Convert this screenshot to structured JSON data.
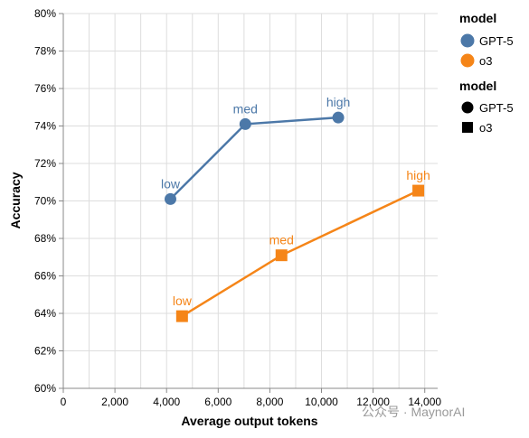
{
  "chart_data": {
    "type": "line",
    "xlabel": "Average output tokens",
    "ylabel": "Accuracy",
    "xlim": [
      0,
      14500
    ],
    "ylim": [
      60,
      80
    ],
    "x_ticks": [
      0,
      2000,
      4000,
      6000,
      8000,
      10000,
      12000,
      14000
    ],
    "x_tick_labels": [
      "0",
      "2,000",
      "4,000",
      "6,000",
      "8,000",
      "10,000",
      "12,000",
      "14,000"
    ],
    "y_ticks": [
      60,
      62,
      64,
      66,
      68,
      70,
      72,
      74,
      76,
      78,
      80
    ],
    "y_tick_labels": [
      "60%",
      "62%",
      "64%",
      "66%",
      "68%",
      "70%",
      "72%",
      "74%",
      "76%",
      "78%",
      "80%"
    ],
    "grid": true,
    "legend_position": "top-right",
    "series": [
      {
        "name": "GPT-5",
        "color": "#4c78a8",
        "shape": "circle",
        "points": [
          {
            "x": 4150,
            "y": 70.1,
            "label": "low"
          },
          {
            "x": 7050,
            "y": 74.1,
            "label": "med"
          },
          {
            "x": 10650,
            "y": 74.45,
            "label": "high"
          }
        ]
      },
      {
        "name": "o3",
        "color": "#f58518",
        "shape": "square",
        "points": [
          {
            "x": 4600,
            "y": 63.85,
            "label": "low"
          },
          {
            "x": 8450,
            "y": 67.1,
            "label": "med"
          },
          {
            "x": 13750,
            "y": 70.55,
            "label": "high"
          }
        ]
      }
    ],
    "legend": {
      "color_title": "model",
      "shape_title": "model",
      "entries": [
        "GPT-5",
        "o3"
      ]
    }
  },
  "watermark": "公众号 · MaynorAI"
}
